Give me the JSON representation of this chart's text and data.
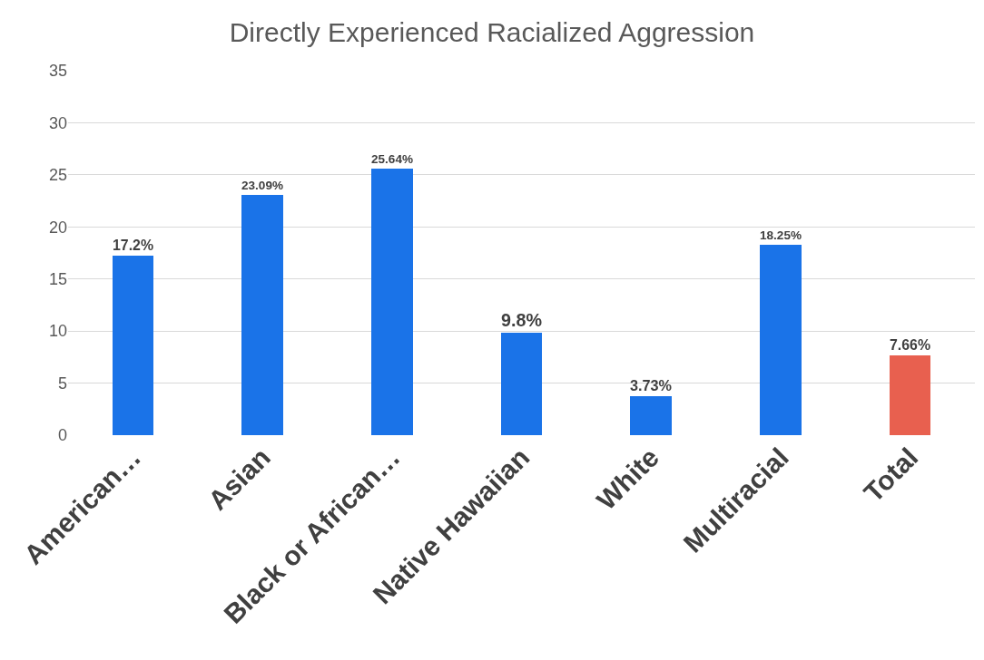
{
  "chart_data": {
    "type": "bar",
    "title": "Directly Experienced Racialized Aggression",
    "categories": [
      "American…",
      "Asian",
      "Black or African…",
      "Native Hawaiian",
      "White",
      "Multiracial",
      "Total"
    ],
    "values": [
      17.2,
      23.09,
      25.64,
      9.8,
      3.73,
      18.25,
      7.66
    ],
    "colors": [
      "#1a73e8",
      "#1a73e8",
      "#1a73e8",
      "#1a73e8",
      "#1a73e8",
      "#1a73e8",
      "#e8604f"
    ],
    "value_labels": [
      "17.2%",
      "23.09%",
      "25.64%",
      "9.8%",
      "3.73%",
      "18.25%",
      "7.66%"
    ],
    "ylim": [
      0,
      35
    ],
    "yticks": [
      0,
      5,
      10,
      15,
      20,
      25,
      30,
      35
    ],
    "grid": "y"
  }
}
